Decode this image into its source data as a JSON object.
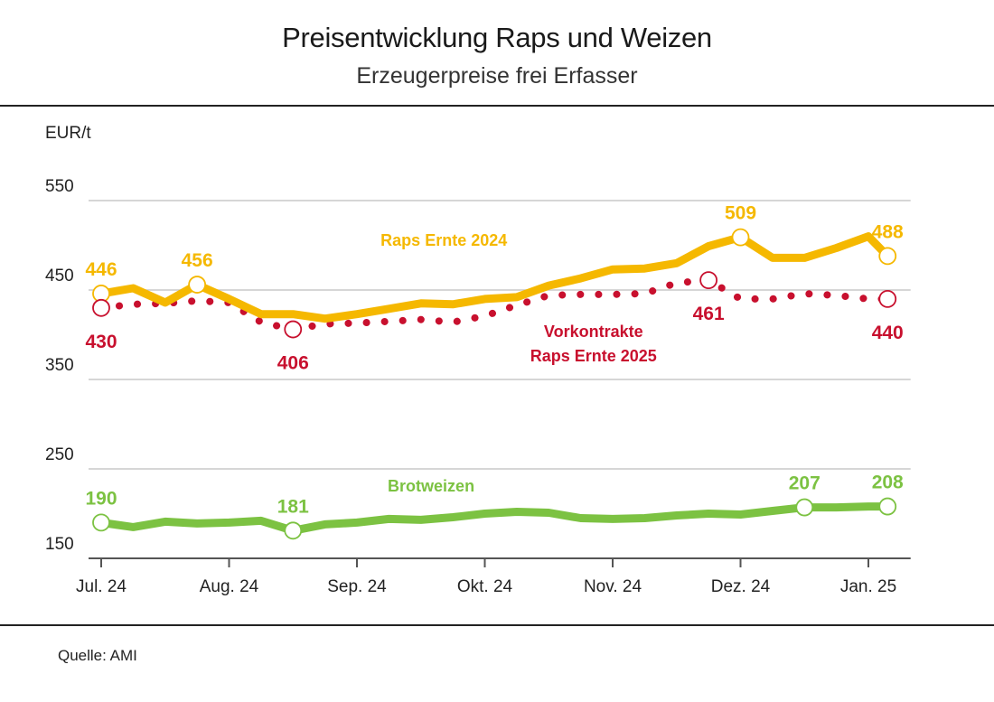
{
  "header": {
    "title": "Preisentwicklung Raps und Weizen",
    "subtitle": "Erzeugerpreise frei Erfasser"
  },
  "footer": {
    "source": "Quelle: AMI"
  },
  "colors": {
    "raps": "#f5b800",
    "vorkontrakte": "#c8102e",
    "weizen": "#7cc242",
    "grid": "#c8c8c8",
    "axis": "#555555"
  },
  "chart_data": {
    "type": "line",
    "ylabel": "EUR/t",
    "ylim": [
      150,
      550
    ],
    "yticks": [
      150,
      250,
      350,
      450,
      550
    ],
    "xlim": [
      0,
      6.3
    ],
    "xticks": [
      {
        "label": "Jul. 24",
        "x": 0
      },
      {
        "label": "Aug. 24",
        "x": 1
      },
      {
        "label": "Sep. 24",
        "x": 2
      },
      {
        "label": "Okt. 24",
        "x": 3
      },
      {
        "label": "Nov. 24",
        "x": 4
      },
      {
        "label": "Dez. 24",
        "x": 5
      },
      {
        "label": "Jan. 25",
        "x": 6
      }
    ],
    "grid": true,
    "series": [
      {
        "name": "Raps Ernte 2024",
        "style": "solid",
        "color": "#f5b800",
        "x": [
          0,
          0.25,
          0.5,
          0.75,
          1.0,
          1.25,
          1.5,
          1.75,
          2.0,
          2.25,
          2.5,
          2.75,
          3.0,
          3.25,
          3.5,
          3.75,
          4.0,
          4.25,
          4.5,
          4.75,
          5.0,
          5.25,
          5.5,
          5.75,
          6.0,
          6.15
        ],
        "y": [
          446,
          452,
          436,
          456,
          440,
          423,
          423,
          418,
          423,
          429,
          435,
          434,
          440,
          442,
          455,
          463,
          473,
          474,
          480,
          499,
          509,
          486,
          486,
          497,
          510,
          488
        ]
      },
      {
        "name": "Vorkontrakte Raps Ernte 2025",
        "style": "dotted",
        "color": "#c8102e",
        "x": [
          0,
          0.25,
          0.5,
          0.75,
          1.0,
          1.25,
          1.5,
          1.75,
          2.0,
          2.25,
          2.5,
          2.75,
          3.0,
          3.25,
          3.5,
          3.75,
          4.0,
          4.25,
          4.5,
          4.75,
          5.0,
          5.25,
          5.5,
          5.75,
          6.0,
          6.15
        ],
        "y": [
          430,
          434,
          435,
          438,
          436,
          414,
          406,
          412,
          413,
          415,
          417,
          414,
          421,
          433,
          444,
          445,
          445,
          446,
          458,
          461,
          440,
          440,
          446,
          444,
          440,
          440
        ]
      },
      {
        "name": "Brotweizen",
        "style": "solid",
        "color": "#7cc242",
        "x": [
          0,
          0.25,
          0.5,
          0.75,
          1.0,
          1.25,
          1.5,
          1.75,
          2.0,
          2.25,
          2.5,
          2.75,
          3.0,
          3.25,
          3.5,
          3.75,
          4.0,
          4.25,
          4.5,
          4.75,
          5.0,
          5.25,
          5.5,
          5.75,
          6.0,
          6.15
        ],
        "y": [
          190,
          185,
          191,
          189,
          190,
          192,
          181,
          188,
          190,
          194,
          193,
          196,
          200,
          202,
          201,
          195,
          194,
          195,
          198,
          200,
          199,
          203,
          207,
          207,
          208,
          208
        ]
      }
    ],
    "annotations": [
      {
        "series": 0,
        "index": 0,
        "text": "446",
        "pos": "above"
      },
      {
        "series": 0,
        "index": 3,
        "text": "456",
        "pos": "above"
      },
      {
        "series": 0,
        "index": 20,
        "text": "509",
        "pos": "above"
      },
      {
        "series": 0,
        "index": 25,
        "text": "488",
        "pos": "above"
      },
      {
        "series": 1,
        "index": 0,
        "text": "430",
        "pos": "below"
      },
      {
        "series": 1,
        "index": 6,
        "text": "406",
        "pos": "below"
      },
      {
        "series": 1,
        "index": 19,
        "text": "461",
        "pos": "below"
      },
      {
        "series": 1,
        "index": 25,
        "text": "440",
        "pos": "below"
      },
      {
        "series": 2,
        "index": 0,
        "text": "190",
        "pos": "above"
      },
      {
        "series": 2,
        "index": 6,
        "text": "181",
        "pos": "above"
      },
      {
        "series": 2,
        "index": 22,
        "text": "207",
        "pos": "above"
      },
      {
        "series": 2,
        "index": 25,
        "text": "208",
        "pos": "above"
      }
    ],
    "series_labels": [
      {
        "series": 0,
        "lines": [
          "Raps Ernte 2024"
        ]
      },
      {
        "series": 1,
        "lines": [
          "Vorkontrakte",
          "Raps Ernte 2025"
        ]
      },
      {
        "series": 2,
        "lines": [
          "Brotweizen"
        ]
      }
    ]
  }
}
